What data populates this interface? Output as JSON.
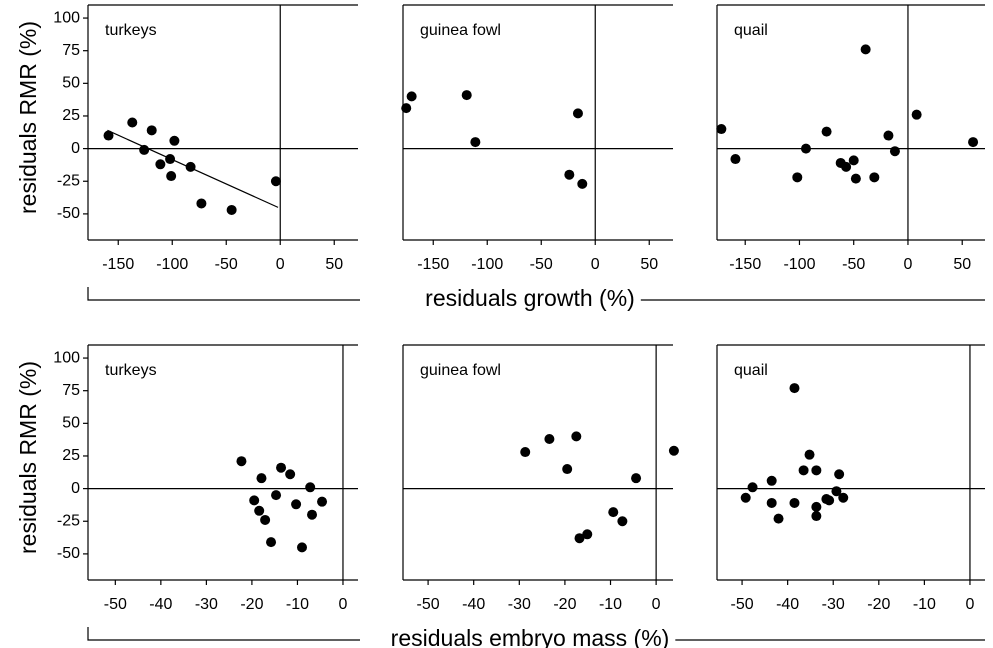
{
  "chart_data": [
    {
      "type": "scatter",
      "title": "turkeys",
      "ylabel": "residuals RMR (%)",
      "color": "#000000",
      "x": [
        -159,
        -137,
        -119,
        -126,
        -98,
        -111,
        -102,
        -101,
        -83,
        -73,
        -45,
        -4
      ],
      "y": [
        10,
        20,
        14,
        -1,
        6,
        -12,
        -8,
        -21,
        -14,
        -42,
        -47,
        -25
      ],
      "fit_line": {
        "x": [
          -160,
          -2
        ],
        "y": [
          14,
          -45
        ]
      },
      "xlim": [
        -178,
        72
      ],
      "ylim": [
        -70,
        110
      ],
      "xticks": [
        -150,
        -100,
        -50,
        0,
        50
      ],
      "yticks": [
        -50,
        -25,
        0,
        25,
        50,
        75,
        100
      ]
    },
    {
      "type": "scatter",
      "title": "guinea fowl",
      "xlabel": "residuals growth (%)",
      "color": "#000000",
      "x": [
        -175,
        -170,
        -119,
        -111,
        -16,
        -24,
        -12
      ],
      "y": [
        31,
        40,
        41,
        5,
        27,
        -20,
        -27
      ],
      "xlim": [
        -178,
        72
      ],
      "ylim": [
        -70,
        110
      ],
      "xticks": [
        -150,
        -100,
        -50,
        0,
        50
      ]
    },
    {
      "type": "scatter",
      "title": "quail",
      "color": "#000000",
      "x": [
        -172,
        -159,
        -102,
        -94,
        -75,
        -62,
        -57,
        -50,
        -48,
        -39,
        -31,
        -18,
        -12,
        8,
        60
      ],
      "y": [
        15,
        -8,
        -22,
        0,
        13,
        -11,
        -14,
        -9,
        -23,
        76,
        -22,
        10,
        -2,
        26,
        5
      ],
      "xlim": [
        -176,
        71
      ],
      "ylim": [
        -70,
        110
      ],
      "xticks": [
        -150,
        -100,
        -50,
        0,
        50
      ]
    },
    {
      "type": "scatter",
      "title": "turkeys",
      "ylabel": "residuals RMR (%)",
      "color": "#000000",
      "x": [
        -22.3,
        -19.5,
        -18.4,
        -17.9,
        -17.1,
        -15.8,
        -14.7,
        -13.6,
        -11.6,
        -10.3,
        -9,
        -7.2,
        -6.8,
        -4.6
      ],
      "y": [
        21,
        -9,
        -17,
        8,
        -24,
        -41,
        -5,
        16,
        11,
        -12,
        -45,
        1,
        -20,
        -10
      ],
      "xlim": [
        -56,
        3.3
      ],
      "ylim": [
        -70,
        110
      ],
      "xticks": [
        -50,
        -40,
        -30,
        -20,
        -10,
        0
      ],
      "yticks": [
        -50,
        -25,
        0,
        25,
        50,
        75,
        100
      ]
    },
    {
      "type": "scatter",
      "title": "guinea fowl",
      "xlabel": "residuals embryo mass (%)",
      "color": "#000000",
      "x": [
        -28.7,
        -23.4,
        -19.5,
        -17.5,
        -16.8,
        -15.1,
        -9.4,
        -7.4,
        -4.4,
        3.9
      ],
      "y": [
        28,
        38,
        15,
        40,
        -38,
        -35,
        -18,
        -25,
        8,
        29
      ],
      "xlim": [
        -55.5,
        3.7
      ],
      "ylim": [
        -70,
        110
      ],
      "xticks": [
        -50,
        -40,
        -30,
        -20,
        -10,
        0
      ]
    },
    {
      "type": "scatter",
      "title": "quail",
      "color": "#000000",
      "x": [
        -49.2,
        -47.7,
        -43.5,
        -43.5,
        -42,
        -38.5,
        -38.5,
        -36.5,
        -35.2,
        -33.7,
        -33.7,
        -33.7,
        -31.5,
        -30.9,
        -29.3,
        -28.7,
        -27.8
      ],
      "y": [
        -7,
        1,
        6,
        -11,
        -23,
        77,
        -11,
        14,
        26,
        14,
        -14,
        -21,
        -8,
        -9,
        -2,
        11,
        -7
      ],
      "xlim": [
        -55.5,
        3.3
      ],
      "ylim": [
        -70,
        110
      ],
      "xticks": [
        -50,
        -40,
        -30,
        -20,
        -10,
        0
      ]
    }
  ]
}
